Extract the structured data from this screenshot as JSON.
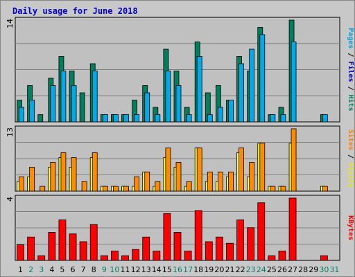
{
  "chart_data": {
    "type": "bar",
    "title": "Daily usage for June 2018",
    "days": [
      "1",
      "2",
      "3",
      "4",
      "5",
      "6",
      "7",
      "8",
      "9",
      "10",
      "11",
      "12",
      "13",
      "14",
      "15",
      "16",
      "17",
      "18",
      "19",
      "20",
      "21",
      "22",
      "23",
      "24",
      "25",
      "26",
      "27",
      "28",
      "29",
      "30",
      "31"
    ],
    "weekend_days": [
      "2",
      "3",
      "9",
      "10",
      "16",
      "17",
      "23",
      "24",
      "30",
      "31"
    ],
    "panels": [
      {
        "id": "hits-files",
        "max_label": "14",
        "ymax": 14,
        "right_label": [
          {
            "text": "Pages",
            "color": "#00a0e0"
          },
          {
            "text": " / ",
            "color": "#000000"
          },
          {
            "text": "Files",
            "color": "#0000cc"
          },
          {
            "text": " / ",
            "color": "#000000"
          },
          {
            "text": "Hits",
            "color": "#008060"
          }
        ],
        "series": [
          {
            "name": "Hits",
            "color": "#007f5f",
            "values": [
              3,
              5,
              1,
              6,
              9,
              7,
              4,
              8,
              1,
              1,
              1,
              3,
              5,
              2,
              10,
              7,
              2,
              11,
              4,
              5,
              3,
              9,
              7,
              13,
              1,
              2,
              14,
              0,
              0,
              1,
              0
            ]
          },
          {
            "name": "Files",
            "color": "#00aae8",
            "values": [
              2,
              3,
              0,
              5,
              7,
              5,
              0,
              7,
              1,
              1,
              1,
              1,
              4,
              1,
              7,
              5,
              1,
              9,
              1,
              2,
              3,
              8,
              10,
              12,
              1,
              1,
              11,
              0,
              0,
              1,
              0
            ]
          }
        ]
      },
      {
        "id": "visits-sites",
        "max_label": "13",
        "ymax": 13,
        "right_label": [
          {
            "text": "Sites",
            "color": "#ff8000"
          },
          {
            "text": " / ",
            "color": "#000000"
          },
          {
            "text": "Visits",
            "color": "#e8e800"
          }
        ],
        "series": [
          {
            "name": "Visits",
            "color": "#ffff40",
            "values": [
              2,
              3,
              0,
              5,
              7,
              5,
              0,
              7,
              1,
              1,
              1,
              1,
              4,
              1,
              7,
              5,
              1,
              9,
              2,
              2,
              3,
              8,
              3,
              10,
              1,
              1,
              10,
              0,
              0,
              1,
              0
            ]
          },
          {
            "name": "Sites",
            "color": "#ff8c00",
            "values": [
              3,
              5,
              1,
              6,
              8,
              7,
              2,
              8,
              1,
              1,
              1,
              3,
              4,
              2,
              9,
              6,
              2,
              9,
              4,
              4,
              4,
              9,
              6,
              10,
              1,
              1,
              13,
              0,
              0,
              1,
              0
            ]
          }
        ]
      },
      {
        "id": "kbytes",
        "max_label": "4",
        "ymax": 4,
        "right_label": [
          {
            "text": "KBytes",
            "color": "#ff0000"
          }
        ],
        "series": [
          {
            "name": "KBytes",
            "color": "#ff0000",
            "values": [
              1,
              1.5,
              0.3,
              1.8,
              2.6,
              1.7,
              1.2,
              2.3,
              0.3,
              0.6,
              0.3,
              0.7,
              1.5,
              0.6,
              3.0,
              1.8,
              0.6,
              3.2,
              1.2,
              1.5,
              1.1,
              2.6,
              2.1,
              3.7,
              0.3,
              0.6,
              4.0,
              0,
              0,
              0.3,
              0
            ]
          }
        ]
      }
    ]
  }
}
